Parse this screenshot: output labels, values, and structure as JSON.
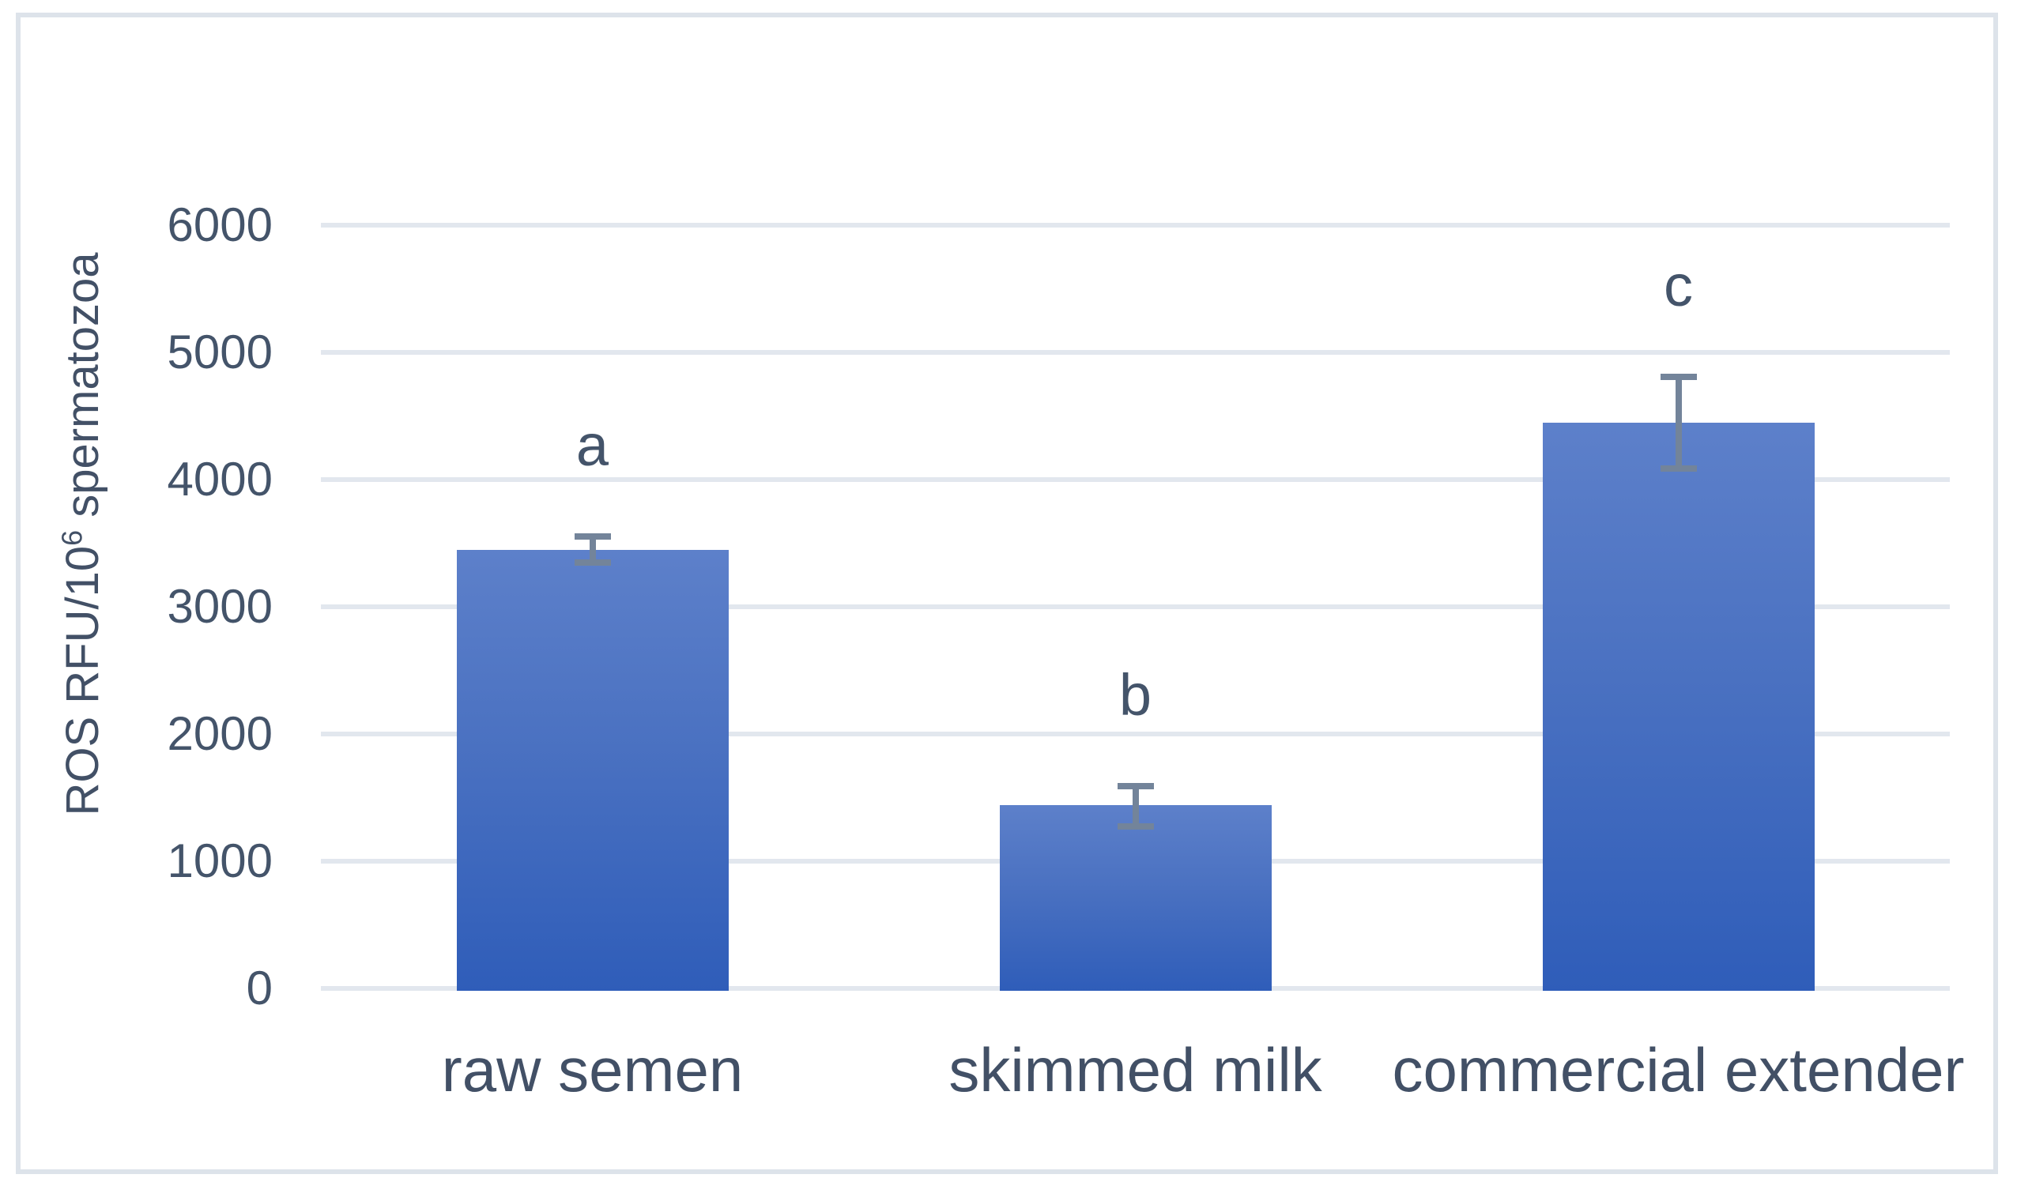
{
  "figure": {
    "background": "#ffffff",
    "border_color": "#dde3ea"
  },
  "chart_data": {
    "type": "bar",
    "title": "",
    "categories": [
      "raw semen",
      "skimmed milk",
      "commercial extender"
    ],
    "values": [
      3450,
      1440,
      4450
    ],
    "error_bars": [
      {
        "low": 3350,
        "high": 3550
      },
      {
        "low": 1275,
        "high": 1590
      },
      {
        "low": 4090,
        "high": 4810
      }
    ],
    "sig_letters": [
      "a",
      "b",
      "c"
    ],
    "ylabel": "ROS RFU/10⁶ spermatozoa",
    "ylabel_parts": {
      "prefix": "ROS RFU/10",
      "superscript": "6",
      "suffix": " spermatozoa"
    },
    "xlabel": "",
    "ylim": [
      0,
      6000
    ],
    "yticks": [
      0,
      1000,
      2000,
      3000,
      4000,
      5000,
      6000
    ],
    "grid": true,
    "legend": false,
    "colors": {
      "bar_top": "#5d80ca",
      "bar_bottom": "#2f5db9",
      "error_bar": "#73849a",
      "gridline": "#e2e7ee",
      "text": "#44546A"
    }
  }
}
